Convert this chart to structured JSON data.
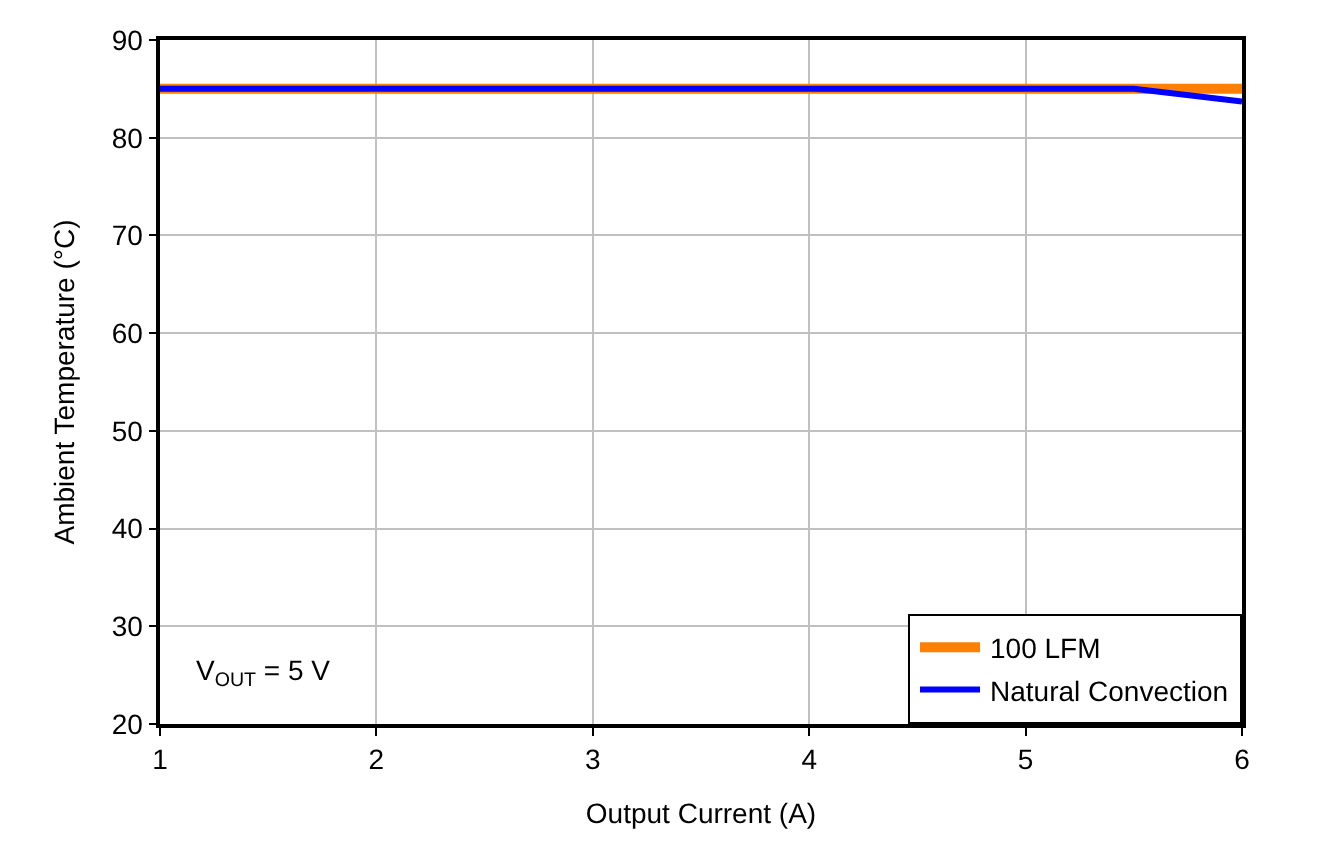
{
  "chart_data": {
    "type": "line",
    "xlabel": "Output Current (A)",
    "ylabel": "Ambient Temperature (°C)",
    "series": [
      {
        "name": "100 LFM",
        "color": "#ff8000",
        "x": [
          1,
          5.5,
          6
        ],
        "values": [
          85,
          85,
          85
        ]
      },
      {
        "name": "Natural Convection",
        "color": "#0000ff",
        "x": [
          1,
          5.5,
          6
        ],
        "values": [
          85,
          85,
          83.7
        ]
      }
    ],
    "xlim": [
      1,
      6
    ],
    "xticks": [
      1,
      2,
      3,
      4,
      5,
      6
    ],
    "ylim": [
      20,
      90
    ],
    "yticks": [
      20,
      30,
      40,
      50,
      60,
      70,
      80,
      90
    ],
    "grid": true,
    "legend": "bottom right",
    "marker": "none",
    "line_style": "solid",
    "annotations": [
      "V$_{OUT}$ = 5 V"
    ]
  }
}
